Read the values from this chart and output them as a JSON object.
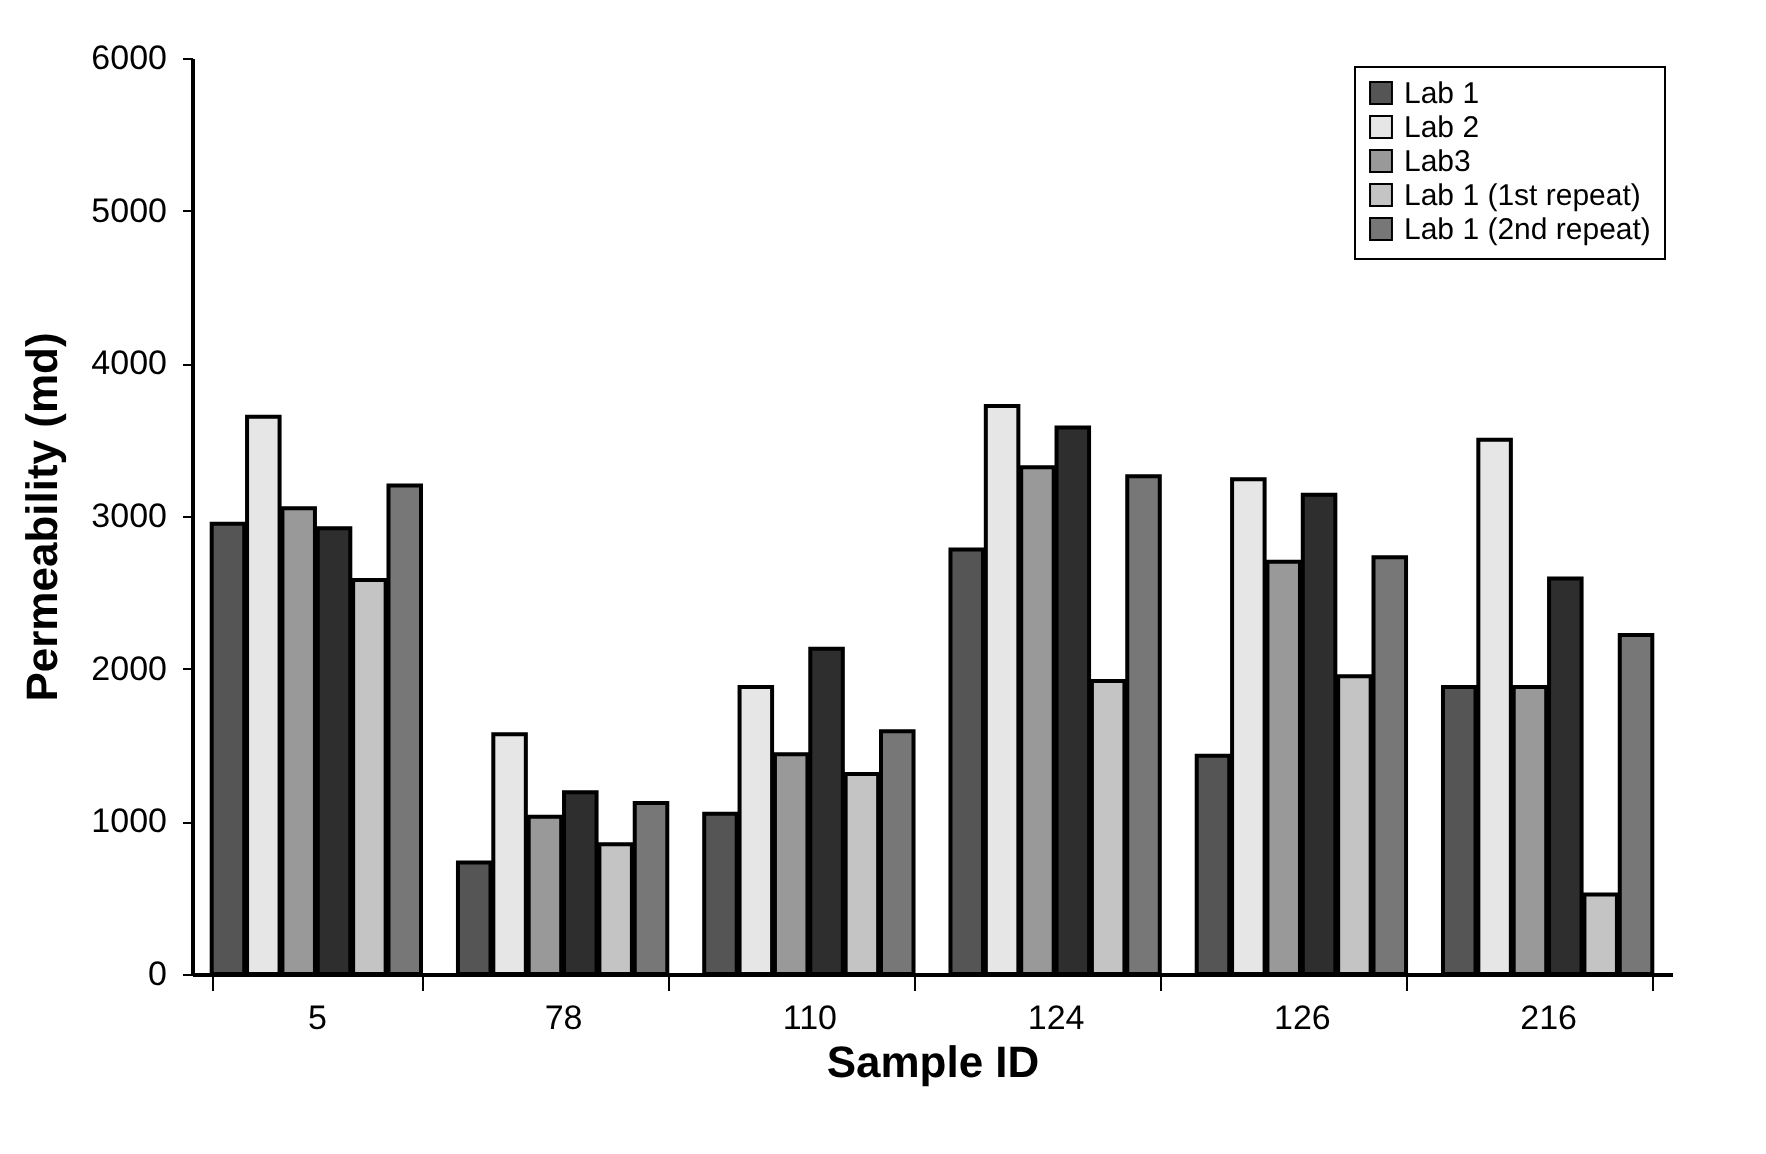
{
  "chart_data": {
    "type": "bar",
    "xlabel": "Sample ID",
    "ylabel": "Permeability (md)",
    "categories": [
      "5",
      "78",
      "110",
      "124",
      "126",
      "216"
    ],
    "series": [
      {
        "name": "Lab 1",
        "color": "#555555",
        "values": [
          2950,
          730,
          1050,
          2780,
          1430,
          1880
        ]
      },
      {
        "name": "Lab 2",
        "color": "#e6e6e6",
        "values": [
          3650,
          1570,
          1880,
          3720,
          3240,
          3500
        ]
      },
      {
        "name": "Lab3",
        "color": "#999999",
        "values": [
          3050,
          1030,
          1440,
          3320,
          2700,
          1880
        ]
      },
      {
        "color": "#2e2e2e",
        "values": [
          2920,
          1190,
          2130,
          3580,
          3140,
          2590
        ]
      },
      {
        "name": "Lab 1 (1st repeat)",
        "color": "#c4c4c4",
        "values": [
          2580,
          850,
          1310,
          1920,
          1950,
          520
        ]
      },
      {
        "name": "Lab 1 (2nd repeat)",
        "color": "#777777",
        "values": [
          3200,
          1120,
          1590,
          3260,
          2730,
          2220
        ]
      }
    ],
    "ylim": [
      0,
      6000
    ],
    "yticks": [
      0,
      1000,
      2000,
      3000,
      4000,
      5000,
      6000
    ],
    "grid": false,
    "legend": "top right"
  }
}
